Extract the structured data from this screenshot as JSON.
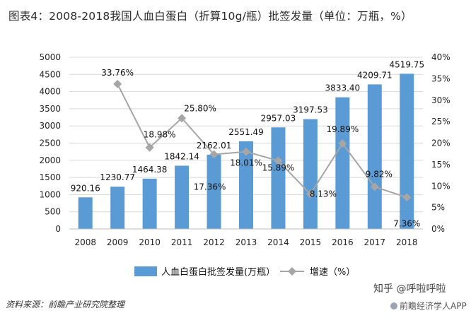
{
  "title": "图表4：2008-2018我国人血白蛋白（折算10g/瓶）批签发量（单位：万瓶，%）",
  "source": "资料来源：前瞻产业研究院整理",
  "watermark": {
    "zhihu": "知乎 @呼啦呼啦",
    "app": "前瞻经济学人APP"
  },
  "colors": {
    "bar": "#5b9bd5",
    "line": "#a6a6a6",
    "grid": "#d9d9d9"
  },
  "chart_data": {
    "type": "bar",
    "categories": [
      "2008",
      "2009",
      "2010",
      "2011",
      "2012",
      "2013",
      "2014",
      "2015",
      "2016",
      "2017",
      "2018"
    ],
    "series": [
      {
        "name": "人血白蛋白批签发量(万瓶）",
        "type": "bar",
        "axis": "left",
        "values": [
          920.16,
          1230.77,
          1464.38,
          1842.14,
          2162.01,
          2551.49,
          2957.03,
          3197.53,
          3833.4,
          4209.71,
          4519.75
        ],
        "labels": [
          "920.16",
          "1230.77",
          "1464.38",
          "1842.14",
          "2162.01",
          "2551.49",
          "2957.03",
          "3197.53",
          "3833.40",
          "4209.71",
          "4519.75"
        ]
      },
      {
        "name": "增速（%）",
        "type": "line",
        "axis": "right",
        "values": [
          null,
          33.76,
          18.98,
          25.8,
          17.36,
          18.01,
          15.89,
          8.13,
          19.89,
          9.82,
          7.36
        ],
        "labels": [
          "",
          "33.76%",
          "18.98%",
          "25.80%",
          "17.36%",
          "18.01%",
          "15.89%",
          "8.13%",
          "19.89%",
          "9.82%",
          "7.36%"
        ]
      }
    ],
    "ylim_left": [
      0,
      5000
    ],
    "yticks_left": [
      "0",
      "500",
      "1000",
      "1500",
      "2000",
      "2500",
      "3000",
      "3500",
      "4000",
      "4500",
      "5000"
    ],
    "ylim_right": [
      0,
      40
    ],
    "yticks_right": [
      "0%",
      "5%",
      "10%",
      "15%",
      "20%",
      "25%",
      "30%",
      "35%",
      "40%"
    ],
    "grid": true,
    "legend": "bottom"
  }
}
